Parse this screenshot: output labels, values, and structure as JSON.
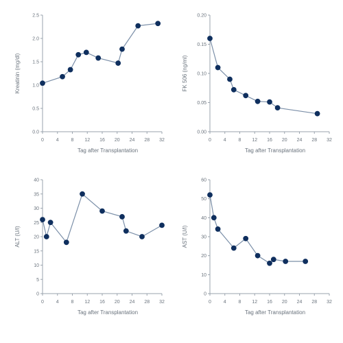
{
  "colors": {
    "series": "#0f2f5e",
    "line": "#7b8fa8",
    "axis": "#9aa3ad"
  },
  "chart_data": [
    {
      "type": "line",
      "title": "",
      "xlabel": "Tag after Transplantation",
      "ylabel": "Kreatinin (mg/dl)",
      "xlim": [
        0,
        30
      ],
      "ylim": [
        0.0,
        2.5
      ],
      "xticks": [
        "0",
        "4",
        "8",
        "12",
        "16",
        "20",
        "24",
        "28",
        "32"
      ],
      "yticks": [
        "0.0",
        "0.5",
        "1.0",
        "1.5",
        "2.0",
        "2.5"
      ],
      "grid": false,
      "series": [
        {
          "x": [
            0,
            5,
            7,
            9,
            11,
            14,
            19,
            20,
            24,
            29
          ],
          "y": [
            1.04,
            1.18,
            1.33,
            1.65,
            1.7,
            1.58,
            1.47,
            1.77,
            2.27,
            2.32
          ]
        }
      ]
    },
    {
      "type": "line",
      "title": "",
      "xlabel": "Tag after Transplantation",
      "ylabel": "FK 506 (ng/ml)",
      "xlim": [
        0,
        30
      ],
      "ylim": [
        0.0,
        0.2
      ],
      "xticks": [
        "0",
        "4",
        "8",
        "12",
        "16",
        "20",
        "24",
        "28",
        "32"
      ],
      "yticks": [
        "0.00",
        "0.05",
        "0.10",
        "0.15",
        "0.20"
      ],
      "grid": false,
      "series": [
        {
          "x": [
            0,
            2,
            5,
            6,
            9,
            12,
            15,
            17,
            27
          ],
          "y": [
            0.16,
            0.11,
            0.09,
            0.072,
            0.062,
            0.052,
            0.051,
            0.041,
            0.031
          ]
        }
      ]
    },
    {
      "type": "line",
      "title": "",
      "xlabel": "Tag after Transplantation",
      "ylabel": "ALT (U/l)",
      "xlim": [
        0,
        30
      ],
      "ylim": [
        0,
        40
      ],
      "xticks": [
        "0",
        "4",
        "8",
        "12",
        "16",
        "20",
        "24",
        "28",
        "32"
      ],
      "yticks": [
        "0",
        "5",
        "10",
        "15",
        "20",
        "25",
        "30",
        "35",
        "40"
      ],
      "grid": false,
      "series": [
        {
          "x": [
            0,
            1,
            2,
            6,
            10,
            15,
            20,
            21,
            25,
            30
          ],
          "y": [
            26,
            20,
            25,
            18,
            35,
            29,
            27,
            22,
            20,
            24
          ]
        }
      ]
    },
    {
      "type": "line",
      "title": "",
      "xlabel": "Tag after Transplantation",
      "ylabel": "AST (U/l)",
      "xlim": [
        0,
        30
      ],
      "ylim": [
        0,
        60
      ],
      "xticks": [
        "0",
        "4",
        "8",
        "12",
        "16",
        "20",
        "24",
        "28",
        "32"
      ],
      "yticks": [
        "0",
        "10",
        "20",
        "30",
        "40",
        "50",
        "60"
      ],
      "grid": false,
      "series": [
        {
          "x": [
            0,
            1,
            2,
            6,
            9,
            12,
            15,
            16,
            19,
            24
          ],
          "y": [
            52,
            40,
            34,
            24,
            29,
            20,
            16,
            18,
            17,
            17
          ]
        }
      ]
    }
  ]
}
